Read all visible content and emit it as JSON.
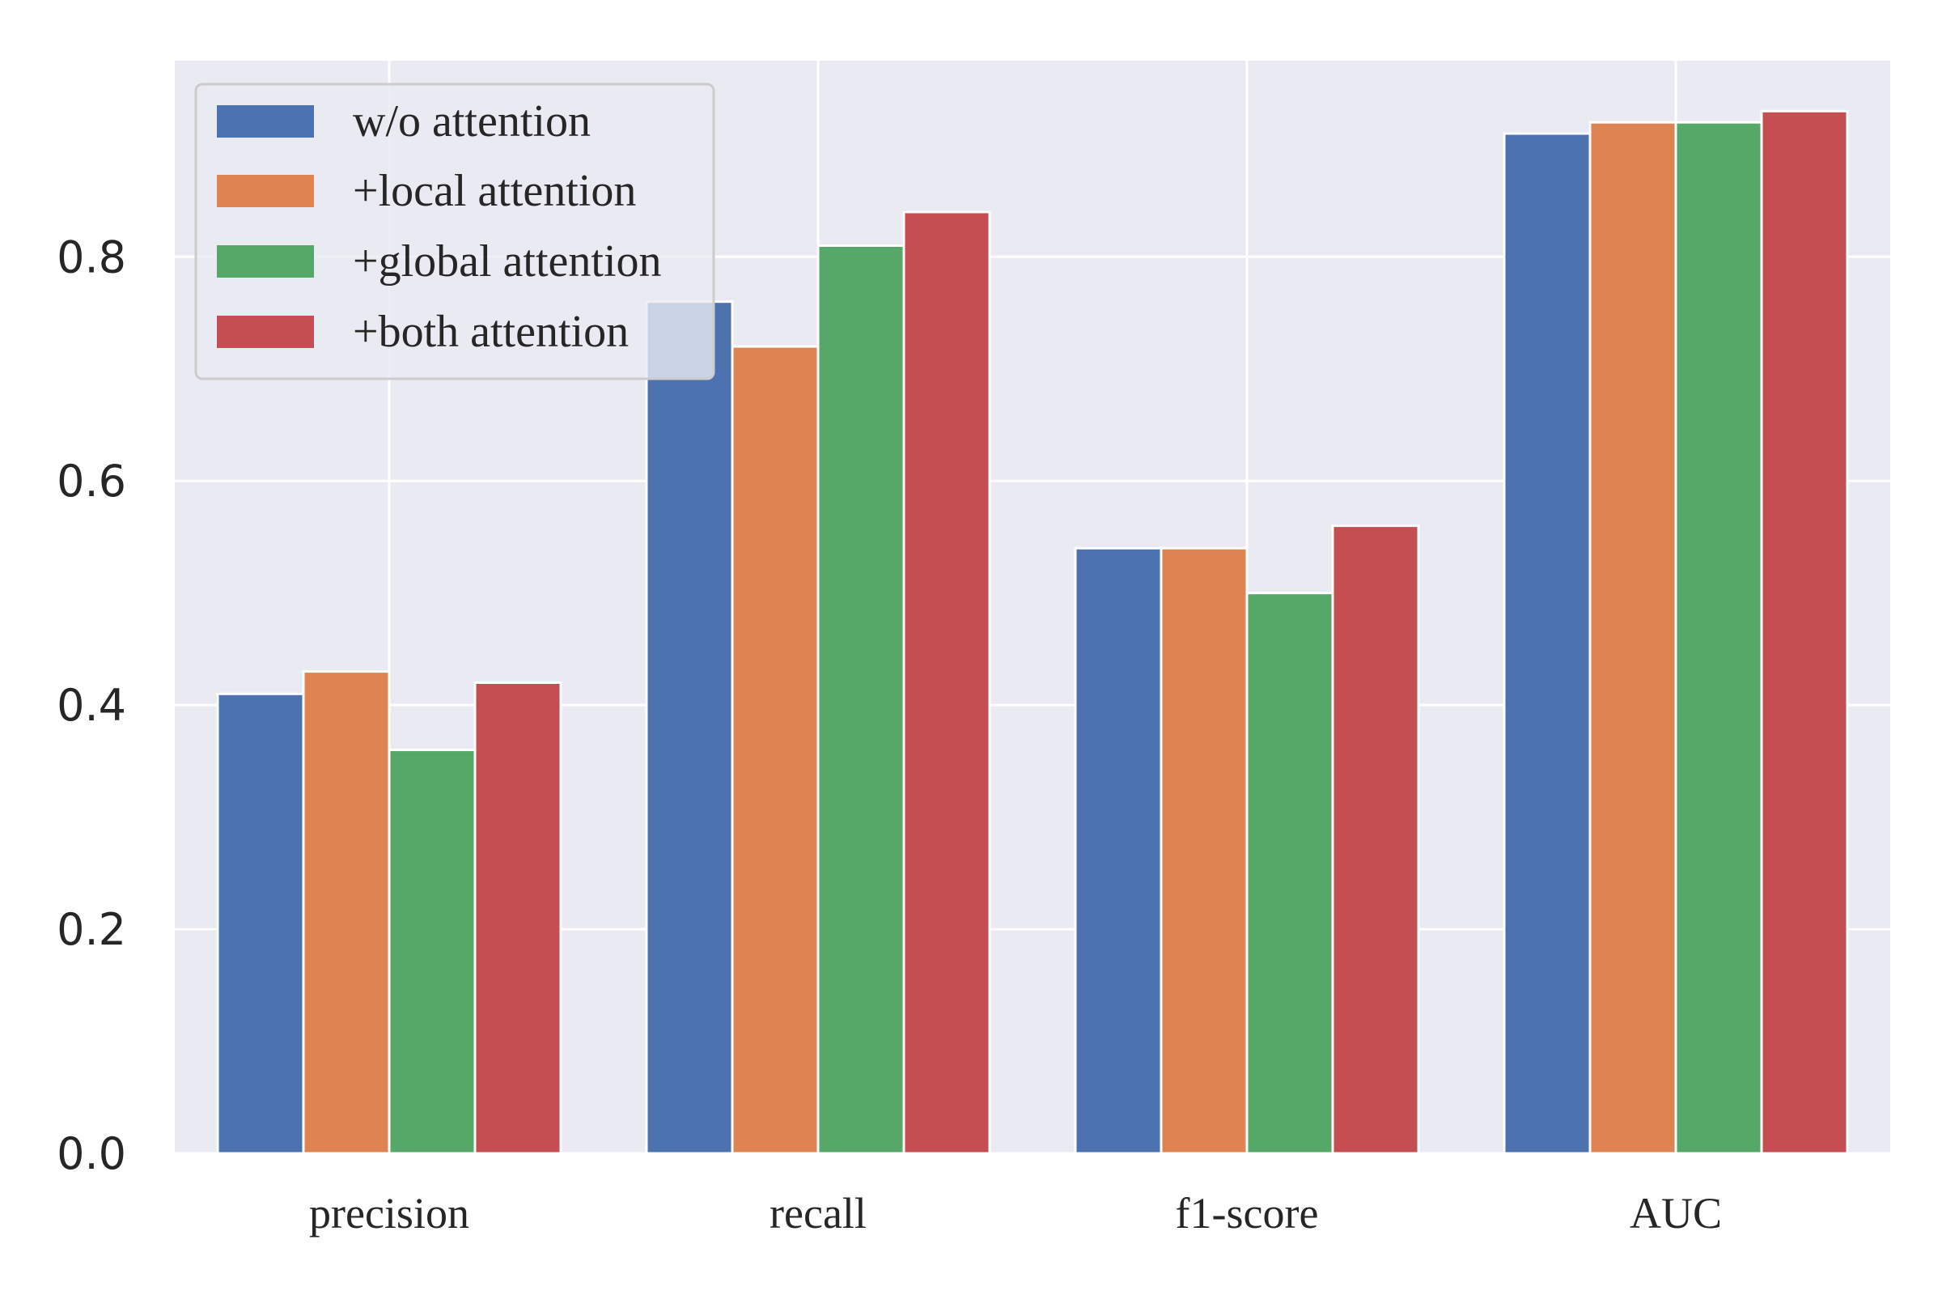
{
  "chart_data": {
    "type": "bar",
    "title": "",
    "xlabel": "",
    "ylabel": "",
    "categories": [
      "precision",
      "recall",
      "f1-score",
      "AUC"
    ],
    "ylim": [
      0,
      0.975
    ],
    "yticks": [
      "0.0",
      "0.2",
      "0.4",
      "0.6",
      "0.8"
    ],
    "ytick_values": [
      0.0,
      0.2,
      0.4,
      0.6,
      0.8
    ],
    "grid": true,
    "legend_position": "top-left",
    "series": [
      {
        "name": "w/o attention",
        "color": "#4C72B0",
        "values": [
          0.41,
          0.76,
          0.54,
          0.91
        ]
      },
      {
        "name": "+local attention",
        "color": "#DD8452",
        "values": [
          0.43,
          0.72,
          0.54,
          0.92
        ]
      },
      {
        "name": "+global attention",
        "color": "#55A868",
        "values": [
          0.36,
          0.81,
          0.5,
          0.92
        ]
      },
      {
        "name": "+both attention",
        "color": "#C44E52",
        "values": [
          0.42,
          0.84,
          0.56,
          0.93
        ]
      }
    ]
  }
}
